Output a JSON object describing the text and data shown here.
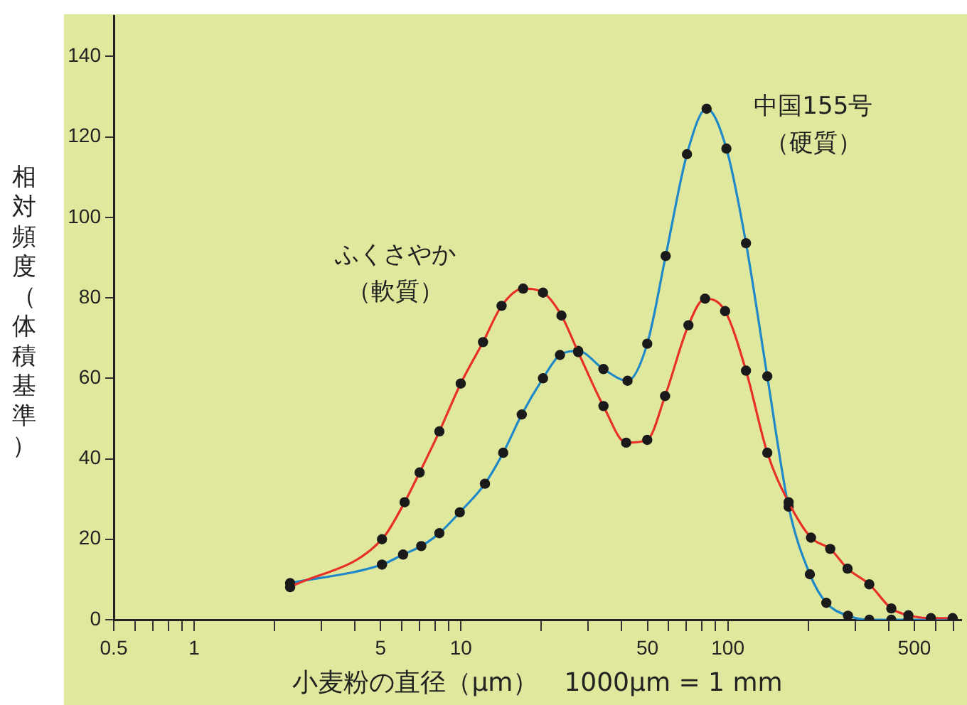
{
  "chart_data": {
    "type": "line",
    "xlabel": "小麦粉の直径（µm）　1000µm = 1 mm",
    "ylabel": "相対頻度（体積基準）",
    "log": "x",
    "xlim": [
      0.5,
      750
    ],
    "ylim": [
      0,
      150
    ],
    "xticks": [
      0.5,
      {
        "value": 0.6,
        "label": null
      },
      {
        "value": 0.7,
        "label": null
      },
      {
        "value": 0.8,
        "label": null
      },
      {
        "value": 0.9,
        "label": null
      },
      1,
      {
        "value": 2,
        "label": null
      },
      {
        "value": 3,
        "label": null
      },
      {
        "value": 4,
        "label": null
      },
      5,
      {
        "value": 6,
        "label": null
      },
      {
        "value": 7,
        "label": null
      },
      {
        "value": 8,
        "label": null
      },
      {
        "value": 9,
        "label": null
      },
      10,
      {
        "value": 20,
        "label": null
      },
      {
        "value": 30,
        "label": null
      },
      {
        "value": 40,
        "label": null
      },
      50,
      {
        "value": 60,
        "label": null
      },
      {
        "value": 70,
        "label": null
      },
      {
        "value": 80,
        "label": null
      },
      {
        "value": 90,
        "label": null
      },
      100,
      {
        "value": 200,
        "label": null
      },
      {
        "value": 300,
        "label": null
      },
      {
        "value": 400,
        "label": null
      },
      500,
      {
        "value": 600,
        "label": null
      },
      {
        "value": 700,
        "label": null
      }
    ],
    "yticks": [
      0,
      20,
      40,
      60,
      80,
      100,
      120,
      140
    ],
    "grid": false,
    "legend": false,
    "marker": "circle",
    "line_style": "solid",
    "series": [
      {
        "name": "ふくさやか（軟質）",
        "color": "#e8302a",
        "x": [
          2.29,
          5.06,
          6.15,
          7.0,
          8.3,
          9.98,
          12.1,
          14.2,
          17.1,
          20.3,
          23.8,
          27.5,
          34.2,
          41.6,
          49.9,
          58.2,
          71.2,
          82.2,
          97.7,
          117,
          140.6,
          169,
          205,
          242,
          281,
          339,
          410,
          475,
          577,
          696
        ],
        "values": [
          8.1,
          20,
          29.2,
          36.6,
          46.8,
          58.7,
          69,
          78,
          82.3,
          81.3,
          75.6,
          66.5,
          53.1,
          44,
          44.7,
          55.6,
          73.2,
          79.8,
          76.7,
          61.9,
          41.5,
          29.2,
          20.4,
          17.6,
          12.7,
          8.8,
          2.8,
          1.1,
          0.4,
          0.4
        ]
      },
      {
        "name": "中国155号（硬質）",
        "color": "#1f88c8",
        "x": [
          2.29,
          5.06,
          6.07,
          7.1,
          8.3,
          9.9,
          12.3,
          14.4,
          16.9,
          20.3,
          23.5,
          27.5,
          34.2,
          42.1,
          49.9,
          58.5,
          70.3,
          83.3,
          98.8,
          117,
          140.6,
          169,
          203,
          234,
          282,
          339,
          410,
          475,
          577,
          696
        ],
        "values": [
          9.1,
          13.7,
          16.2,
          18.3,
          21.5,
          26.7,
          33.8,
          41.5,
          51,
          60,
          65.8,
          66.8,
          62.3,
          59.4,
          68.6,
          90.4,
          115.7,
          127,
          117.1,
          93.6,
          60.5,
          28.1,
          11.3,
          4.2,
          1,
          0,
          0,
          0,
          0,
          0
        ]
      }
    ]
  }
}
